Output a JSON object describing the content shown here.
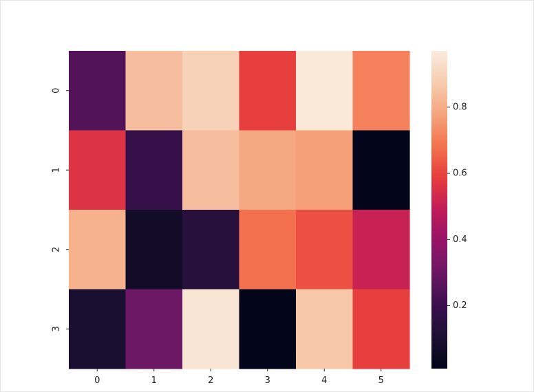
{
  "chart_data": {
    "type": "heatmap",
    "title": "",
    "xlabel": "",
    "ylabel": "",
    "x_categories": [
      "0",
      "1",
      "2",
      "3",
      "4",
      "5"
    ],
    "y_categories": [
      "0",
      "1",
      "2",
      "3"
    ],
    "values": [
      [
        0.25,
        0.84,
        0.89,
        0.59,
        0.96,
        0.71
      ],
      [
        0.56,
        0.18,
        0.84,
        0.79,
        0.77,
        0.01
      ],
      [
        0.81,
        0.07,
        0.14,
        0.68,
        0.62,
        0.51
      ],
      [
        0.1,
        0.3,
        0.95,
        0.01,
        0.86,
        0.59
      ]
    ],
    "colormap": "rocket",
    "colorbar": {
      "range": [
        0.01,
        0.97
      ],
      "ticks": [
        0.2,
        0.4,
        0.6,
        0.8
      ],
      "tick_labels": [
        "0.2",
        "0.4",
        "0.6",
        "0.8"
      ]
    },
    "grid": false,
    "legend": "none"
  }
}
